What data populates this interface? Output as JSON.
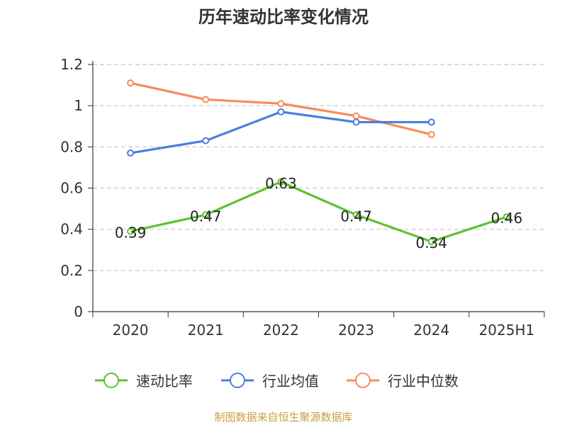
{
  "chart_data": {
    "type": "line",
    "title": "历年速动比率变化情况",
    "categories": [
      "2020",
      "2021",
      "2022",
      "2023",
      "2024",
      "2025H1"
    ],
    "ylim": [
      0,
      1.2
    ],
    "yticks": [
      "0",
      "0.2",
      "0.4",
      "0.6",
      "0.8",
      "1",
      "1.2"
    ],
    "grid": true,
    "legend_position": "bottom",
    "series": [
      {
        "name": "速动比率",
        "color": "#5cc32c",
        "values": [
          0.39,
          0.47,
          0.63,
          0.47,
          0.34,
          0.46
        ],
        "labels": [
          "0.39",
          "0.47",
          "0.63",
          "0.47",
          "0.34",
          "0.46"
        ]
      },
      {
        "name": "行业均值",
        "color": "#4a7fdc",
        "values": [
          0.77,
          0.83,
          0.97,
          0.92,
          0.92,
          null
        ]
      },
      {
        "name": "行业中位数",
        "color": "#f78c5a",
        "values": [
          1.11,
          1.03,
          1.01,
          0.95,
          0.86,
          null
        ]
      }
    ]
  },
  "source": "制图数据来自恒生聚源数据库"
}
